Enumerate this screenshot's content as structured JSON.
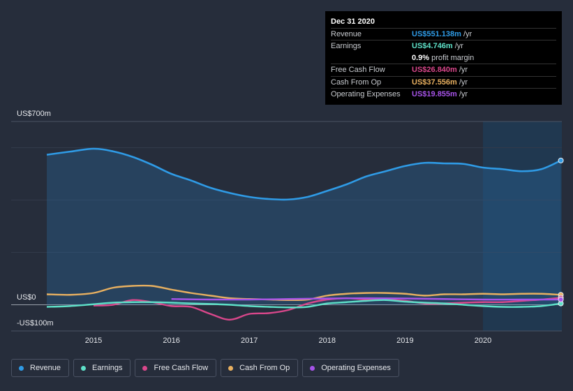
{
  "tooltip": {
    "date": "Dec 31 2020",
    "rows": [
      {
        "label": "Revenue",
        "value": "US$551.138m",
        "unit": "/yr",
        "color": "#2f9be6"
      },
      {
        "label": "Earnings",
        "value": "US$4.746m",
        "unit": "/yr",
        "color": "#5ee0c8"
      },
      {
        "label": "",
        "value": "0.9%",
        "unit": "profit margin",
        "color": "#ffffff"
      },
      {
        "label": "Free Cash Flow",
        "value": "US$26.840m",
        "unit": "/yr",
        "color": "#d9478b"
      },
      {
        "label": "Cash From Op",
        "value": "US$37.556m",
        "unit": "/yr",
        "color": "#e8b060"
      },
      {
        "label": "Operating Expenses",
        "value": "US$19.855m",
        "unit": "/yr",
        "color": "#a653e8"
      }
    ]
  },
  "legend": [
    {
      "label": "Revenue",
      "color": "#2f9be6"
    },
    {
      "label": "Earnings",
      "color": "#5ee0c8"
    },
    {
      "label": "Free Cash Flow",
      "color": "#d9478b"
    },
    {
      "label": "Cash From Op",
      "color": "#e8b060"
    },
    {
      "label": "Operating Expenses",
      "color": "#a653e8"
    }
  ],
  "chart_data": {
    "type": "line",
    "y_top_label": "US$700m",
    "y_zero_label": "US$0",
    "y_bottom_label": "-US$100m",
    "ylim": [
      -100,
      700
    ],
    "xlim": [
      2014.1,
      2021.0
    ],
    "x_ticks": [
      "2015",
      "2016",
      "2017",
      "2018",
      "2019",
      "2020"
    ],
    "x_tick_values": [
      2015,
      2016,
      2017,
      2018,
      2019,
      2020
    ],
    "forecast_start": 2020.0,
    "grid": true,
    "legend_position": "bottom",
    "series": [
      {
        "name": "Revenue",
        "color": "#2f9be6",
        "filled": true,
        "points": [
          [
            2014.4,
            573
          ],
          [
            2014.7,
            585
          ],
          [
            2015.0,
            596
          ],
          [
            2015.25,
            586
          ],
          [
            2015.5,
            565
          ],
          [
            2015.75,
            535
          ],
          [
            2016.0,
            500
          ],
          [
            2016.25,
            475
          ],
          [
            2016.5,
            447
          ],
          [
            2016.75,
            427
          ],
          [
            2017.0,
            412
          ],
          [
            2017.25,
            404
          ],
          [
            2017.5,
            402
          ],
          [
            2017.75,
            412
          ],
          [
            2018.0,
            435
          ],
          [
            2018.25,
            460
          ],
          [
            2018.5,
            490
          ],
          [
            2018.75,
            510
          ],
          [
            2019.0,
            530
          ],
          [
            2019.25,
            542
          ],
          [
            2019.5,
            540
          ],
          [
            2019.75,
            538
          ],
          [
            2020.0,
            524
          ],
          [
            2020.25,
            518
          ],
          [
            2020.5,
            510
          ],
          [
            2020.75,
            518
          ],
          [
            2021.0,
            551
          ]
        ]
      },
      {
        "name": "Earnings",
        "color": "#5ee0c8",
        "points": [
          [
            2014.4,
            -8
          ],
          [
            2014.7,
            -5
          ],
          [
            2015.0,
            2
          ],
          [
            2015.25,
            8
          ],
          [
            2015.5,
            10
          ],
          [
            2015.75,
            10
          ],
          [
            2016.0,
            8
          ],
          [
            2016.25,
            5
          ],
          [
            2016.5,
            3
          ],
          [
            2016.75,
            0
          ],
          [
            2017.0,
            -5
          ],
          [
            2017.25,
            -8
          ],
          [
            2017.5,
            -10
          ],
          [
            2017.75,
            -8
          ],
          [
            2018.0,
            5
          ],
          [
            2018.25,
            10
          ],
          [
            2018.5,
            15
          ],
          [
            2018.75,
            18
          ],
          [
            2019.0,
            12
          ],
          [
            2019.25,
            8
          ],
          [
            2019.5,
            5
          ],
          [
            2019.75,
            0
          ],
          [
            2020.0,
            -5
          ],
          [
            2020.25,
            -8
          ],
          [
            2020.5,
            -8
          ],
          [
            2020.75,
            -5
          ],
          [
            2021.0,
            5
          ]
        ]
      },
      {
        "name": "Free Cash Flow",
        "color": "#d9478b",
        "points": [
          [
            2015.0,
            -3
          ],
          [
            2015.25,
            0
          ],
          [
            2015.5,
            18
          ],
          [
            2015.75,
            10
          ],
          [
            2016.0,
            -5
          ],
          [
            2016.25,
            -8
          ],
          [
            2016.5,
            -35
          ],
          [
            2016.75,
            -57
          ],
          [
            2017.0,
            -35
          ],
          [
            2017.25,
            -32
          ],
          [
            2017.5,
            -20
          ],
          [
            2017.75,
            5
          ],
          [
            2018.0,
            20
          ],
          [
            2018.25,
            25
          ],
          [
            2018.5,
            20
          ],
          [
            2018.75,
            20
          ],
          [
            2019.0,
            15
          ],
          [
            2019.25,
            5
          ],
          [
            2019.5,
            5
          ],
          [
            2019.75,
            8
          ],
          [
            2020.0,
            10
          ],
          [
            2020.25,
            10
          ],
          [
            2020.5,
            15
          ],
          [
            2020.75,
            20
          ],
          [
            2021.0,
            27
          ]
        ]
      },
      {
        "name": "Cash From Op",
        "color": "#e8b060",
        "points": [
          [
            2014.4,
            40
          ],
          [
            2014.7,
            38
          ],
          [
            2015.0,
            45
          ],
          [
            2015.25,
            65
          ],
          [
            2015.5,
            72
          ],
          [
            2015.75,
            72
          ],
          [
            2016.0,
            58
          ],
          [
            2016.25,
            45
          ],
          [
            2016.5,
            35
          ],
          [
            2016.75,
            25
          ],
          [
            2017.0,
            22
          ],
          [
            2017.25,
            20
          ],
          [
            2017.5,
            18
          ],
          [
            2017.75,
            20
          ],
          [
            2018.0,
            35
          ],
          [
            2018.25,
            42
          ],
          [
            2018.5,
            45
          ],
          [
            2018.75,
            45
          ],
          [
            2019.0,
            42
          ],
          [
            2019.25,
            35
          ],
          [
            2019.5,
            40
          ],
          [
            2019.75,
            40
          ],
          [
            2020.0,
            42
          ],
          [
            2020.25,
            40
          ],
          [
            2020.5,
            42
          ],
          [
            2020.75,
            42
          ],
          [
            2021.0,
            38
          ]
        ]
      },
      {
        "name": "Operating Expenses",
        "color": "#a653e8",
        "points": [
          [
            2016.0,
            22
          ],
          [
            2016.5,
            20
          ],
          [
            2017.0,
            20
          ],
          [
            2017.5,
            22
          ],
          [
            2018.0,
            24
          ],
          [
            2018.5,
            25
          ],
          [
            2019.0,
            24
          ],
          [
            2019.5,
            22
          ],
          [
            2020.0,
            20
          ],
          [
            2020.5,
            20
          ],
          [
            2021.0,
            20
          ]
        ]
      }
    ]
  }
}
